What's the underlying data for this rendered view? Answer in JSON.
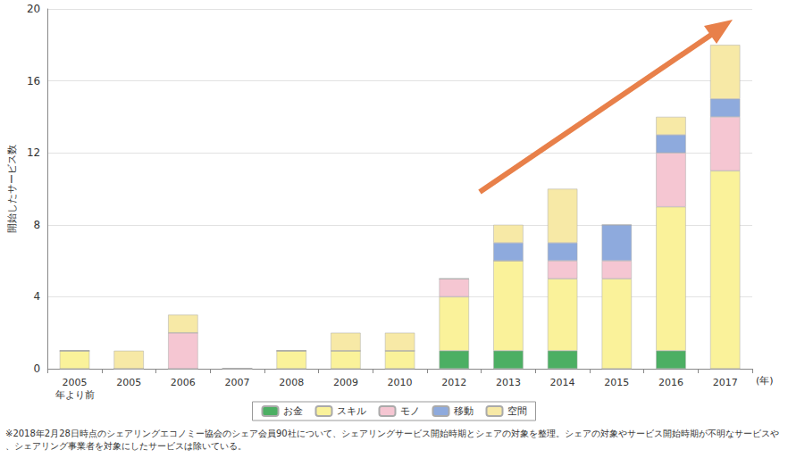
{
  "chart_data": {
    "type": "bar",
    "stacked": true,
    "grid": true,
    "legend": "bottom",
    "x_label": "(年)",
    "y_label": "開始したサービス数",
    "note": "※2018年2月28日時点のシェアリングエコノミー協会のシェア会員90社について、シェアリングサービス開始時期とシェアの対象を整理。シェアの対象やサービス開始時期が不明なサービスや、シェアリング事業者を対象にしたサービスは除いている。",
    "categories": [
      "2005\n年より前",
      "2005",
      "2006",
      "2007",
      "2008",
      "2009",
      "2010",
      "2012",
      "2013",
      "2014",
      "2015",
      "2016",
      "2017"
    ],
    "ylim": [
      0,
      20
    ],
    "yticks": [
      0,
      4,
      8,
      12,
      16,
      20
    ],
    "series": [
      {
        "name": "お金",
        "color": "#4caf63",
        "values": [
          0,
          0,
          0,
          0,
          0,
          0,
          0,
          1,
          1,
          1,
          0,
          1,
          0
        ]
      },
      {
        "name": "スキル",
        "color": "#faf29a",
        "values": [
          1,
          0,
          0,
          0,
          1,
          1,
          1,
          3,
          5,
          4,
          5,
          8,
          11
        ]
      },
      {
        "name": "モノ",
        "color": "#f5c6d2",
        "values": [
          0,
          0,
          2,
          0,
          0,
          0,
          0,
          1,
          0,
          1,
          1,
          3,
          3
        ]
      },
      {
        "name": "移動",
        "color": "#8eaadd",
        "values": [
          0,
          0,
          0,
          0,
          0,
          0,
          0,
          0,
          1,
          1,
          2,
          1,
          1
        ]
      },
      {
        "name": "空間",
        "color": "#f7e9a6",
        "values": [
          0,
          1,
          1,
          0,
          0,
          1,
          1,
          0,
          1,
          3,
          0,
          1,
          3
        ]
      }
    ]
  }
}
